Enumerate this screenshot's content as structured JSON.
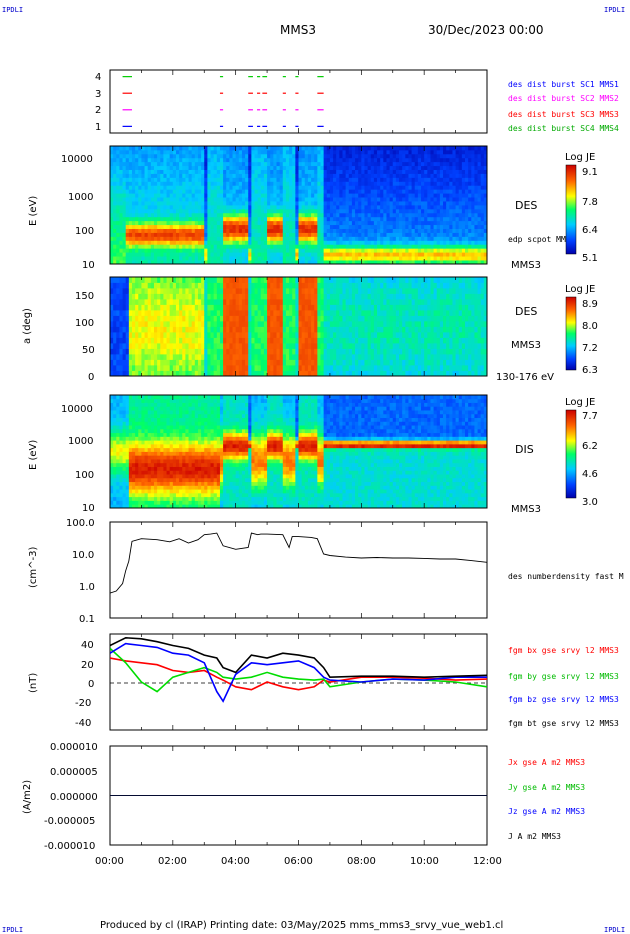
{
  "header": {
    "corner_mark": "IPDLI",
    "mission": "MMS3",
    "datetime": "30/Dec/2023 00:00"
  },
  "footer": {
    "credit": "Produced by cl (IRAP)   Printing date: 03/May/2025   mms_mms3_srvy_vue_web1.cl"
  },
  "time_axis": {
    "ticks": [
      "00:00",
      "02:00",
      "04:00",
      "06:00",
      "08:00",
      "10:00",
      "12:00"
    ],
    "range_hours": [
      0,
      12
    ]
  },
  "colors": {
    "mms1": "#0000ff",
    "mms2": "#ff00ff",
    "mms3": "#ff0000",
    "mms4": "#00cc00",
    "bx": "#ff0000",
    "by": "#00dd00",
    "bz": "#0000ff",
    "bt": "#000000"
  },
  "chart_data": [
    {
      "type": "scatter",
      "name": "burst",
      "ylim": [
        0.6,
        4.4
      ],
      "y_ticks": [
        "1",
        "2",
        "3",
        "4"
      ],
      "legend": [
        {
          "label": "des dist burst SC1 MMS1",
          "color": "#0000ff"
        },
        {
          "label": "des dist burst SC2 MMS2",
          "color": "#ff00ff"
        },
        {
          "label": "des dist burst SC3 MMS3",
          "color": "#ff0000"
        },
        {
          "label": "des dist burst SC4 MMS4",
          "color": "#00cc00"
        }
      ],
      "segments": [
        [
          0.4,
          0.7
        ],
        [
          3.5,
          3.6
        ],
        [
          4.4,
          4.55
        ],
        [
          4.68,
          4.78
        ],
        [
          4.85,
          5.0
        ],
        [
          5.5,
          5.6
        ],
        [
          5.9,
          6.0
        ],
        [
          6.6,
          6.8
        ]
      ]
    },
    {
      "type": "heatmap",
      "name": "des_energy",
      "ylabel": "E (eV)",
      "y_ticks": [
        "10",
        "100",
        "1000",
        "10000"
      ],
      "log_y": true,
      "ylim": [
        10,
        30000
      ],
      "instrument": "DES",
      "sub_label": "MMS3",
      "overlay_label": "edp scpot MMS3",
      "colorbar": {
        "title": "Log JE",
        "ticks": [
          "9.1",
          "7.8",
          "6.4",
          "5.1"
        ],
        "min": 5.1,
        "max": 9.1
      }
    },
    {
      "type": "heatmap",
      "name": "des_pitch",
      "ylabel": "a (deg)",
      "y_ticks": [
        "0",
        "50",
        "100",
        "150"
      ],
      "ylim": [
        0,
        180
      ],
      "instrument": "DES",
      "sub_label": "MMS3",
      "energy_label": "130-176 eV",
      "colorbar": {
        "title": "Log JE",
        "ticks": [
          "8.9",
          "8.0",
          "7.2",
          "6.3"
        ],
        "min": 6.3,
        "max": 8.9
      }
    },
    {
      "type": "heatmap",
      "name": "dis_energy",
      "ylabel": "E (eV)",
      "y_ticks": [
        "10",
        "100",
        "1000",
        "10000"
      ],
      "log_y": true,
      "ylim": [
        10,
        25000
      ],
      "instrument": "DIS",
      "sub_label": "MMS3",
      "colorbar": {
        "title": "Log JE",
        "ticks": [
          "7.7",
          "6.2",
          "4.6",
          "3.0"
        ],
        "min": 3.0,
        "max": 7.7
      }
    },
    {
      "type": "line",
      "name": "density",
      "ylabel": "(cm^-3)",
      "y_ticks": [
        "0.1",
        "1.0",
        "10.0",
        "100.0"
      ],
      "log_y": true,
      "ylim": [
        0.1,
        100
      ],
      "legend": [
        {
          "label": "des numberdensity fast M",
          "color": "#000000"
        }
      ],
      "x": [
        0.0,
        0.2,
        0.4,
        0.5,
        0.6,
        0.7,
        1.0,
        1.5,
        1.9,
        2.2,
        2.5,
        2.8,
        3.0,
        3.2,
        3.4,
        3.6,
        4.0,
        4.4,
        4.5,
        4.7,
        4.8,
        5.0,
        5.5,
        5.7,
        5.8,
        6.0,
        6.4,
        6.6,
        6.8,
        7.0,
        7.5,
        8.0,
        8.5,
        9.0,
        9.5,
        10.0,
        10.5,
        11.0,
        11.5,
        12.0
      ],
      "y": [
        0.6,
        0.7,
        1.2,
        3.0,
        6.0,
        25.0,
        30.0,
        28.0,
        24.0,
        30.0,
        22.0,
        28.0,
        40.0,
        42.0,
        45.0,
        18.0,
        14.0,
        16.0,
        45.0,
        40.0,
        42.0,
        42.0,
        40.0,
        16.0,
        35.0,
        35.0,
        33.0,
        30.0,
        10.0,
        9.0,
        8.0,
        7.5,
        7.8,
        7.5,
        7.5,
        7.3,
        7.0,
        7.0,
        6.2,
        5.5
      ]
    },
    {
      "type": "line",
      "name": "magnetic_field",
      "ylabel": "(nT)",
      "y_ticks": [
        "-40",
        "-20",
        "0",
        "20",
        "40"
      ],
      "ylim": [
        -50,
        50
      ],
      "x": [
        0.0,
        0.5,
        1.0,
        1.5,
        2.0,
        2.5,
        3.0,
        3.4,
        3.6,
        4.0,
        4.5,
        5.0,
        5.5,
        6.0,
        6.5,
        6.8,
        7.0,
        8.0,
        9.0,
        10.0,
        11.0,
        12.0
      ],
      "series": [
        {
          "name": "fgm bx gse srvy l2 MMS3",
          "color": "#ff0000",
          "values": [
            25,
            22,
            20,
            18,
            12,
            10,
            12,
            5,
            2,
            -5,
            -8,
            0,
            -5,
            -8,
            -5,
            2,
            0,
            5,
            5,
            4,
            2,
            3
          ]
        },
        {
          "name": "fgm by gse srvy l2 MMS3",
          "color": "#00dd00",
          "values": [
            35,
            20,
            0,
            -10,
            5,
            10,
            15,
            10,
            5,
            3,
            5,
            10,
            5,
            3,
            2,
            3,
            -5,
            0,
            3,
            2,
            0,
            -5
          ]
        },
        {
          "name": "fgm bz gse srvy l2 MMS3",
          "color": "#0000ff",
          "values": [
            30,
            40,
            38,
            36,
            30,
            28,
            20,
            -10,
            -20,
            8,
            20,
            18,
            20,
            22,
            15,
            5,
            2,
            0,
            3,
            2,
            5,
            5
          ]
        },
        {
          "name": "fgm bt gse srvy l2 MMS3",
          "color": "#000000",
          "values": [
            38,
            46,
            45,
            42,
            38,
            35,
            28,
            25,
            15,
            10,
            28,
            25,
            30,
            28,
            25,
            15,
            5,
            6,
            6,
            5,
            6,
            7
          ]
        }
      ]
    },
    {
      "type": "line",
      "name": "current_density",
      "ylabel": "(A/m2)",
      "y_ticks": [
        "-0.000010",
        "-0.000005",
        "0.000000",
        "0.000005",
        "0.000010"
      ],
      "ylim": [
        -1e-05,
        1e-05
      ],
      "series": [
        {
          "name": "Jx gse A m2 MMS3",
          "color": "#ff0000"
        },
        {
          "name": "Jy gse A m2 MMS3",
          "color": "#00dd00"
        },
        {
          "name": "Jz gse A m2 MMS3",
          "color": "#0000ff"
        },
        {
          "name": "J A m2 MMS3",
          "color": "#000000"
        }
      ]
    }
  ]
}
